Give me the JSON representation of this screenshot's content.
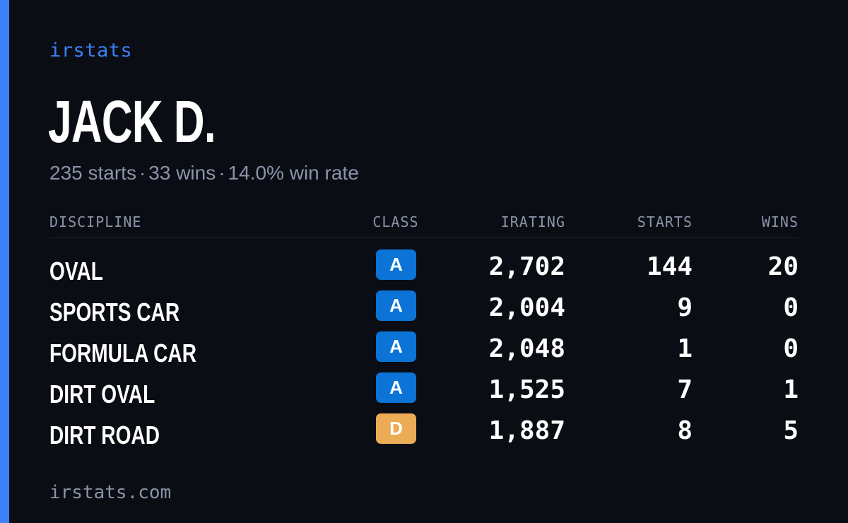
{
  "brand": "irstats",
  "player": {
    "name": "JACK D.",
    "starts_text": "235 starts",
    "wins_text": "33 wins",
    "winrate_text": "14.0% win rate",
    "separator": "·"
  },
  "table": {
    "headers": {
      "discipline": "DISCIPLINE",
      "class": "CLASS",
      "irating": "IRATING",
      "starts": "STARTS",
      "wins": "WINS"
    },
    "rows": [
      {
        "discipline": "OVAL",
        "class": "A",
        "class_color": "#0b74d6",
        "irating": "2,702",
        "starts": "144",
        "wins": "20"
      },
      {
        "discipline": "SPORTS CAR",
        "class": "A",
        "class_color": "#0b74d6",
        "irating": "2,004",
        "starts": "9",
        "wins": "0"
      },
      {
        "discipline": "FORMULA CAR",
        "class": "A",
        "class_color": "#0b74d6",
        "irating": "2,048",
        "starts": "1",
        "wins": "0"
      },
      {
        "discipline": "DIRT OVAL",
        "class": "A",
        "class_color": "#0b74d6",
        "irating": "1,525",
        "starts": "7",
        "wins": "1"
      },
      {
        "discipline": "DIRT ROAD",
        "class": "D",
        "class_color": "#ecac55",
        "irating": "1,887",
        "starts": "8",
        "wins": "5"
      }
    ]
  },
  "footer": "irstats.com",
  "colors": {
    "background": "#0a0d14",
    "accent": "#3b82f6",
    "muted": "#8b93a7",
    "class_a": "#0b74d6",
    "class_d": "#ecac55"
  }
}
